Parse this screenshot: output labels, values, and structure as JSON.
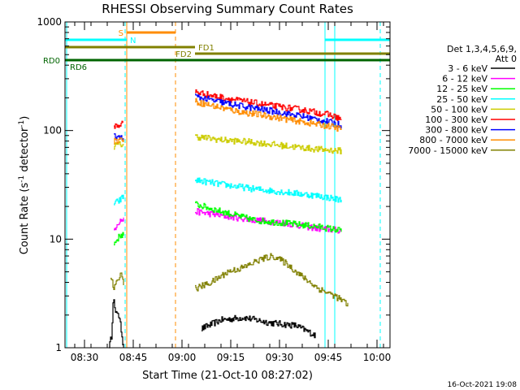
{
  "chart_data": {
    "type": "line",
    "title": "RHESSI Observing Summary Count Rates",
    "xlabel": "Start Time (21-Oct-10 08:27:02)",
    "ylabel_main": "Count Rate (s",
    "ylabel_sup1": "-1",
    "ylabel_mid": " detector",
    "ylabel_sup2": "-1",
    "ylabel_end": ")",
    "y_scale": "log",
    "ylim": [
      1,
      1000
    ],
    "xlim_minutes": [
      -3,
      97
    ],
    "x_ticks": [
      {
        "label": "08:30",
        "min": 3
      },
      {
        "label": "08:45",
        "min": 18
      },
      {
        "label": "09:00",
        "min": 33
      },
      {
        "label": "09:15",
        "min": 48
      },
      {
        "label": "09:30",
        "min": 63
      },
      {
        "label": "09:45",
        "min": 78
      },
      {
        "label": "10:00",
        "min": 93
      }
    ],
    "y_ticks": [
      {
        "label": "1",
        "value": 1
      },
      {
        "label": "10",
        "value": 10
      },
      {
        "label": "100",
        "value": 100
      },
      {
        "label": "1000",
        "value": 1000
      }
    ],
    "legend_header": [
      "Det 1,3,4,5,6,9,",
      "Att 0"
    ],
    "series": [
      {
        "name": "3 - 6 keV",
        "color": "#000000",
        "segments": [
          {
            "x": [
              10.5,
              11.3,
              11.8,
              12.5,
              13.2,
              14.2,
              15
            ],
            "y": [
              1,
              1.3,
              3.0,
              2.0,
              2.2,
              1.5,
              1
            ]
          },
          {
            "x": [
              39,
              45,
              52,
              60,
              68,
              74
            ],
            "y": [
              1.5,
              1.8,
              1.9,
              1.7,
              1.6,
              1.3
            ]
          }
        ]
      },
      {
        "name": "6 - 12 keV",
        "color": "#ff00ff",
        "segments": [
          {
            "x": [
              12,
              13,
              14.2,
              15
            ],
            "y": [
              12,
              14,
              15,
              15
            ]
          },
          {
            "x": [
              37,
              45,
              55,
              65,
              75,
              82
            ],
            "y": [
              18,
              16.5,
              15,
              14,
              12.5,
              12
            ]
          }
        ]
      },
      {
        "name": "12 - 25 keV",
        "color": "#00ff00",
        "segments": [
          {
            "x": [
              12,
              13,
              14.2,
              15
            ],
            "y": [
              9,
              10,
              11,
              11
            ]
          },
          {
            "x": [
              37,
              45,
              55,
              65,
              75,
              82
            ],
            "y": [
              21,
              18,
              15,
              14,
              13,
              12
            ]
          }
        ]
      },
      {
        "name": "25 - 50 keV",
        "color": "#00ffff",
        "segments": [
          {
            "x": [
              12,
              13,
              14,
              15
            ],
            "y": [
              21,
              22,
              23,
              25
            ]
          },
          {
            "x": [
              37,
              45,
              55,
              65,
              75,
              82
            ],
            "y": [
              35,
              32,
              29,
              27,
              25,
              23
            ]
          }
        ]
      },
      {
        "name": "50 - 100 keV",
        "color": "#cccc00",
        "segments": [
          {
            "x": [
              12,
              13.5,
              15
            ],
            "y": [
              72,
              74,
              75
            ]
          },
          {
            "x": [
              37,
              45,
              55,
              65,
              75,
              82
            ],
            "y": [
              88,
              82,
              78,
              72,
              67,
              65
            ]
          }
        ]
      },
      {
        "name": "100 - 300 keV",
        "color": "#ff0000",
        "segments": [
          {
            "x": [
              12,
              13.5,
              15
            ],
            "y": [
              110,
              112,
              118
            ]
          },
          {
            "x": [
              37,
              42,
              50,
              60,
              70,
              78,
              82
            ],
            "y": [
              228,
              210,
              190,
              170,
              155,
              140,
              128
            ]
          }
        ]
      },
      {
        "name": "300 - 800 keV",
        "color": "#0000ff",
        "segments": [
          {
            "x": [
              12,
              13.5,
              15
            ],
            "y": [
              88,
              86,
              85
            ]
          },
          {
            "x": [
              37,
              42,
              50,
              60,
              70,
              78,
              82
            ],
            "y": [
              205,
              190,
              170,
              152,
              135,
              120,
              112
            ]
          }
        ]
      },
      {
        "name": "800 - 7000 keV",
        "color": "#ff8c00",
        "segments": [
          {
            "x": [
              12,
              13.5,
              15
            ],
            "y": [
              80,
              82,
              84
            ]
          },
          {
            "x": [
              37,
              42,
              50,
              60,
              70,
              78,
              82
            ],
            "y": [
              185,
              170,
              150,
              135,
              120,
              110,
              103
            ]
          }
        ]
      },
      {
        "name": "7000 - 15000 keV",
        "color": "#808000",
        "segments": [
          {
            "x": [
              11,
              12,
              13,
              14,
              15
            ],
            "y": [
              4.5,
              3.5,
              4.0,
              5.0,
              4.0
            ]
          },
          {
            "x": [
              37,
              42,
              47,
              52,
              57,
              61,
              65,
              70,
              75,
              80,
              84
            ],
            "y": [
              3.5,
              4.0,
              5.0,
              5.5,
              6.5,
              7.0,
              6.0,
              4.5,
              3.5,
              3.0,
              2.5
            ]
          }
        ]
      }
    ],
    "flag_bars": [
      {
        "label": "S",
        "color": "#ff8c00",
        "x_start": 16,
        "x_end": 31,
        "label_side": "left"
      },
      {
        "label": "N",
        "color": "#00ffff",
        "x_start": -3,
        "x_end": 16,
        "label_side": "right"
      },
      {
        "label": "N",
        "color": "#00ffff",
        "x_start": 77,
        "x_end": 97,
        "label_side": "none"
      },
      {
        "label": "FD1",
        "color": "#808000",
        "x_start": -3,
        "x_end": 37,
        "label_side": "right"
      },
      {
        "label": "FD2",
        "color": "#808000",
        "x_start": 37,
        "x_end": 97,
        "label_side": "left"
      },
      {
        "label": "RD6",
        "color": "#006400",
        "x_start": -3,
        "x_end": 97,
        "label_side": "sub"
      }
    ],
    "outside_labels": [
      {
        "text": "RD0",
        "color": "#006400"
      }
    ],
    "vertical_lines": [
      {
        "x": -2.5,
        "color": "#00ffff",
        "style": "solid"
      },
      {
        "x": 15.5,
        "color": "#00ffff",
        "style": "dashed"
      },
      {
        "x": 16,
        "color": "#ff8c00",
        "style": "solid"
      },
      {
        "x": 31,
        "color": "#ff8c00",
        "style": "dashed"
      },
      {
        "x": 77,
        "color": "#00ffff",
        "style": "solid"
      },
      {
        "x": 80,
        "color": "#00ffff",
        "style": "solid"
      },
      {
        "x": 94,
        "color": "#00ffff",
        "style": "dashed"
      }
    ],
    "timestamp": "16-Oct-2021 19:08"
  }
}
